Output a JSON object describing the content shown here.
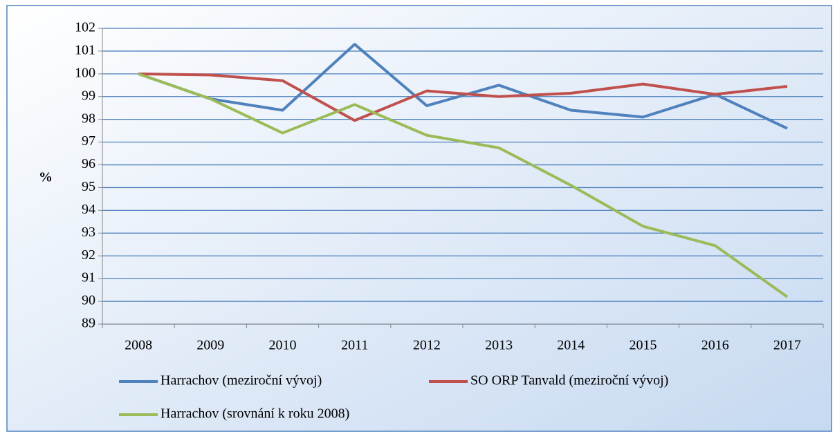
{
  "chart_data": {
    "type": "line",
    "y_label": "%",
    "categories": [
      "2008",
      "2009",
      "2010",
      "2011",
      "2012",
      "2013",
      "2014",
      "2015",
      "2016",
      "2017"
    ],
    "series": [
      {
        "name": "Harrachov (meziroční vývoj)",
        "color": "#4f81bd",
        "values": [
          100,
          98.9,
          98.4,
          101.3,
          98.6,
          99.5,
          98.4,
          98.1,
          99.1,
          97.6
        ]
      },
      {
        "name": "SO ORP Tanvald (meziroční vývoj)",
        "color": "#c0504d",
        "values": [
          100,
          99.95,
          99.7,
          97.95,
          99.25,
          99.0,
          99.15,
          99.55,
          99.1,
          99.45
        ]
      },
      {
        "name": "Harrachov (srovnání k roku 2008)",
        "color": "#9bbb59",
        "values": [
          100,
          98.9,
          97.4,
          98.65,
          97.3,
          96.75,
          95.1,
          93.3,
          92.45,
          90.2
        ]
      }
    ],
    "ylim": [
      89,
      102
    ],
    "yticks": [
      89,
      90,
      91,
      92,
      93,
      94,
      95,
      96,
      97,
      98,
      99,
      100,
      101,
      102
    ],
    "grid": true
  }
}
